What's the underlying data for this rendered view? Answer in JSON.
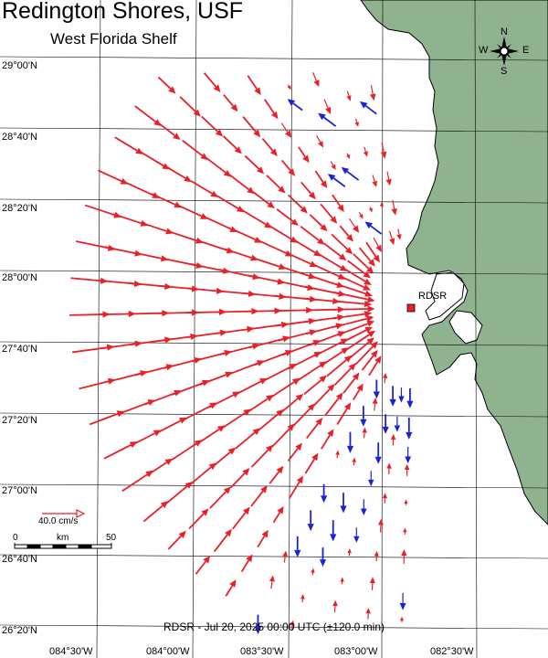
{
  "header": {
    "title": "Redington Shores, USF",
    "subtitle": "West Florida Shelf"
  },
  "footer": {
    "caption": "RDSR - Jul 20, 2025 00:00 UTC (±120.0 min)"
  },
  "grid": {
    "latitudes": [
      "29°00'N",
      "28°40'N",
      "28°20'N",
      "28°00'N",
      "27°40'N",
      "27°20'N",
      "27°00'N",
      "26°40'N",
      "26°20'N"
    ],
    "longitudes": [
      "084°30'W",
      "084°00'W",
      "083°30'W",
      "083°00'W",
      "082°30'W"
    ]
  },
  "station": {
    "label": "RDSR",
    "color": "#e8202a"
  },
  "compass": {
    "n": "N",
    "s": "S",
    "e": "E",
    "w": "W"
  },
  "legend": {
    "reference_speed": "40.0 cm/s",
    "scale_start": "0",
    "scale_unit": "km",
    "scale_end": "50"
  },
  "colors": {
    "land": "#8fb28f",
    "water": "#ffffff",
    "onshore_vector": "#e8202a",
    "offshore_vector": "#1a22d6"
  }
}
